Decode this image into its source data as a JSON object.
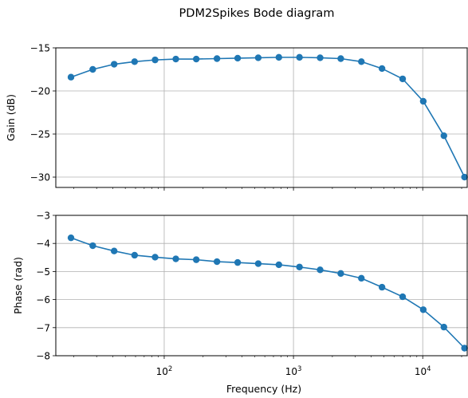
{
  "chart_data": {
    "type": "line",
    "title": "PDM2Spikes Bode diagram",
    "xlabel": "Frequency (Hz)",
    "xscale": "log",
    "xlim": [
      14.5,
      22400
    ],
    "x": [
      19,
      28,
      41,
      59,
      85,
      123,
      177,
      256,
      370,
      534,
      771,
      1113,
      1608,
      2322,
      3353,
      4842,
      6992,
      10097,
      14581,
      21056
    ],
    "x_ticks": [
      {
        "value": 100,
        "base": "10",
        "exp": "2"
      },
      {
        "value": 1000,
        "base": "10",
        "exp": "3"
      },
      {
        "value": 10000,
        "base": "10",
        "exp": "4"
      }
    ],
    "grid": true,
    "color": "#1f77b4",
    "subplots": [
      {
        "ylabel": "Gain (dB)",
        "ylim": [
          -31.2,
          -15
        ],
        "yticks": [
          -15,
          -20,
          -25,
          -30
        ],
        "ytick_labels": [
          "−15",
          "−20",
          "−25",
          "−30"
        ],
        "values": [
          -18.4,
          -17.5,
          -16.9,
          -16.6,
          -16.4,
          -16.3,
          -16.3,
          -16.25,
          -16.2,
          -16.15,
          -16.1,
          -16.1,
          -16.15,
          -16.25,
          -16.6,
          -17.4,
          -18.6,
          -21.2,
          -25.2,
          -30.0
        ]
      },
      {
        "ylabel": "Phase (rad)",
        "ylim": [
          -8,
          -3
        ],
        "yticks": [
          -3,
          -4,
          -5,
          -6,
          -7,
          -8
        ],
        "ytick_labels": [
          "−3",
          "−4",
          "−5",
          "−6",
          "−7",
          "−8"
        ],
        "values": [
          -3.8,
          -4.08,
          -4.27,
          -4.42,
          -4.49,
          -4.55,
          -4.58,
          -4.65,
          -4.68,
          -4.72,
          -4.76,
          -4.84,
          -4.94,
          -5.07,
          -5.24,
          -5.56,
          -5.9,
          -6.36,
          -6.98,
          -7.73
        ]
      }
    ]
  }
}
